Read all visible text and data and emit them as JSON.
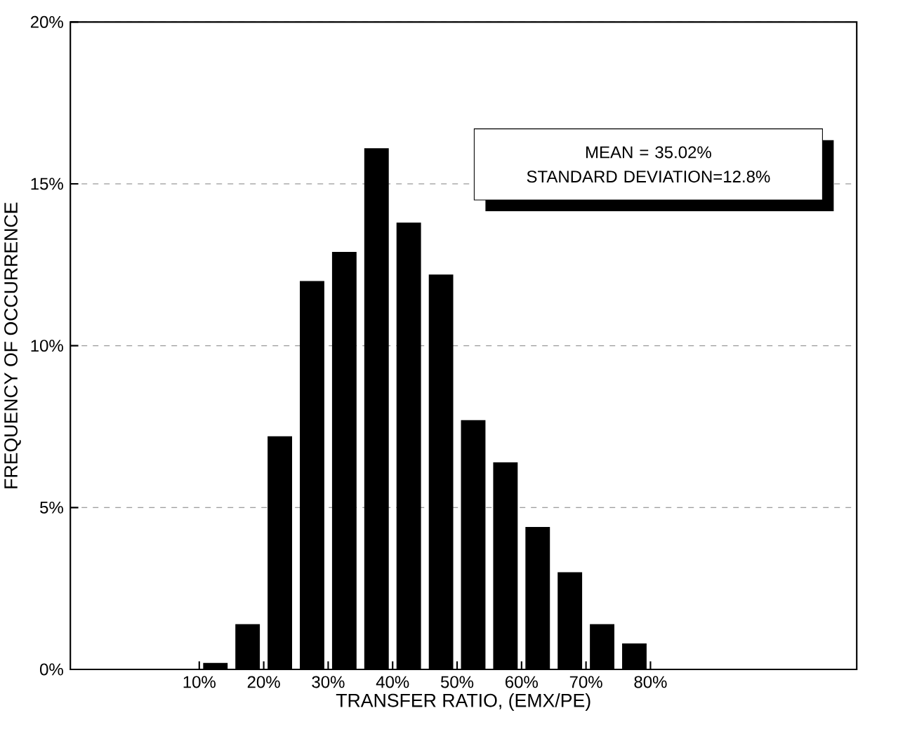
{
  "chart_data": {
    "type": "histogram",
    "xlabel": "TRANSFER RATIO, (EMX/PE)",
    "ylabel": "FREQUENCY OF OCCURRENCE",
    "annotations": [
      "MEAN = 35.02%",
      "STANDARD DEVIATION=12.8%"
    ],
    "bins": [
      10,
      15,
      20,
      25,
      30,
      35,
      40,
      45,
      50,
      55,
      60,
      65,
      70,
      75,
      80
    ],
    "values": [
      0.2,
      1.4,
      7.2,
      12.0,
      12.9,
      16.1,
      13.8,
      12.2,
      7.7,
      6.4,
      4.4,
      3.0,
      1.4,
      0.8
    ],
    "color": "#000000",
    "xlim": [
      -10,
      112
    ],
    "xticks": [
      {
        "value": 10,
        "label": "10%"
      },
      {
        "value": 20,
        "label": "20%"
      },
      {
        "value": 30,
        "label": "30%"
      },
      {
        "value": 40,
        "label": "40%"
      },
      {
        "value": 50,
        "label": "50%"
      },
      {
        "value": 60,
        "label": "60%"
      },
      {
        "value": 70,
        "label": "70%"
      },
      {
        "value": 80,
        "label": "80%"
      }
    ],
    "ylim": [
      0,
      20
    ],
    "yticks": [
      {
        "value": 0,
        "label": "0%"
      },
      {
        "value": 5,
        "label": "5%"
      },
      {
        "value": 10,
        "label": "10%"
      },
      {
        "value": 15,
        "label": "15%"
      },
      {
        "value": 20,
        "label": "20%"
      }
    ],
    "grid": "y"
  }
}
